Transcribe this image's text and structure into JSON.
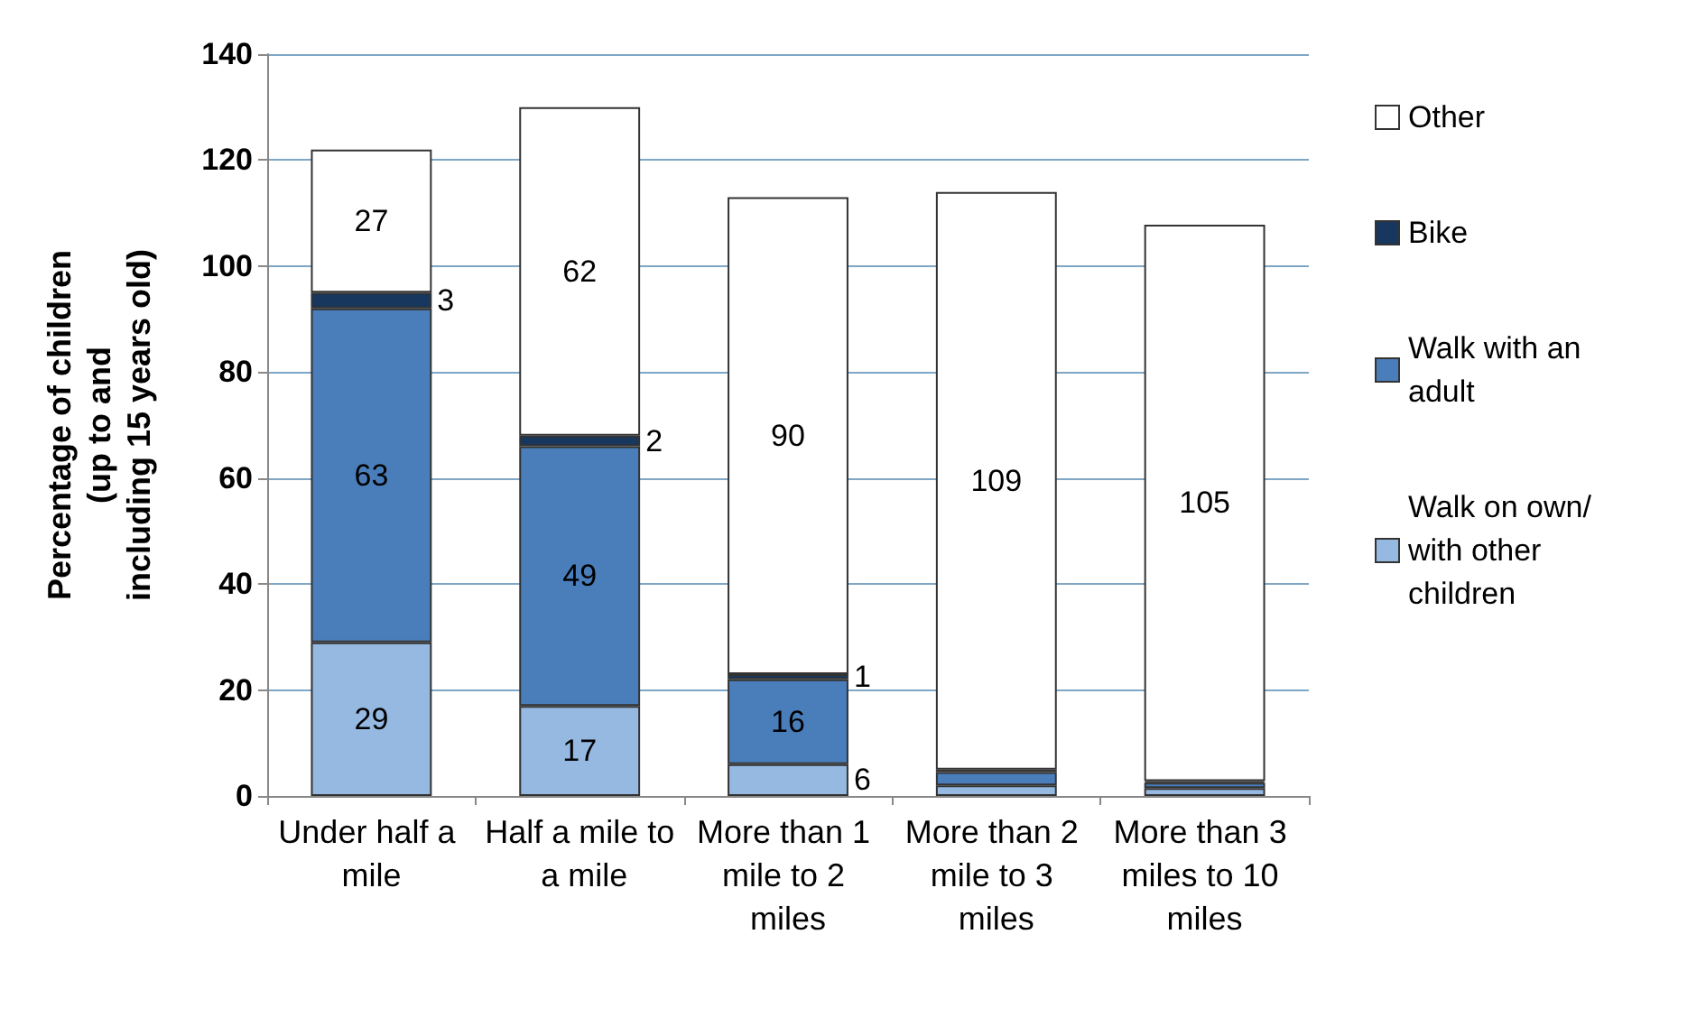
{
  "chart_data": {
    "type": "bar",
    "stacked": true,
    "ylabel": "Percentage of children (up to and including 15 years old)",
    "categories": [
      "Under half a mile",
      "Half a mile to a mile",
      "More than 1 mile to 2 miles",
      "More than 2 mile to 3 miles",
      "More than 3 miles to 10 miles"
    ],
    "series": [
      {
        "name": "Walk on own/with other children",
        "color": "#95b9e0",
        "values": [
          29,
          17,
          6,
          2,
          1.5
        ],
        "value_labels": [
          "29",
          "17",
          "6",
          null,
          null
        ]
      },
      {
        "name": "Walk with an adult",
        "color": "#4a7ebb",
        "values": [
          63,
          49,
          16,
          2.5,
          1
        ],
        "value_labels": [
          "63",
          "49",
          "16",
          null,
          null
        ]
      },
      {
        "name": "Bike",
        "color": "#17375e",
        "values": [
          3,
          2,
          1,
          0.5,
          0.3
        ],
        "value_labels": [
          "3",
          "2",
          "1",
          null,
          null
        ]
      },
      {
        "name": "Other",
        "color": "#ffffff",
        "values": [
          27,
          62,
          90,
          109,
          105
        ],
        "value_labels": [
          "27",
          "62",
          "90",
          "109",
          "105"
        ]
      }
    ],
    "ylim": [
      0,
      140
    ],
    "yticks": [
      0,
      20,
      40,
      60,
      80,
      100,
      120,
      140
    ],
    "grid": "y",
    "legend": "right"
  }
}
